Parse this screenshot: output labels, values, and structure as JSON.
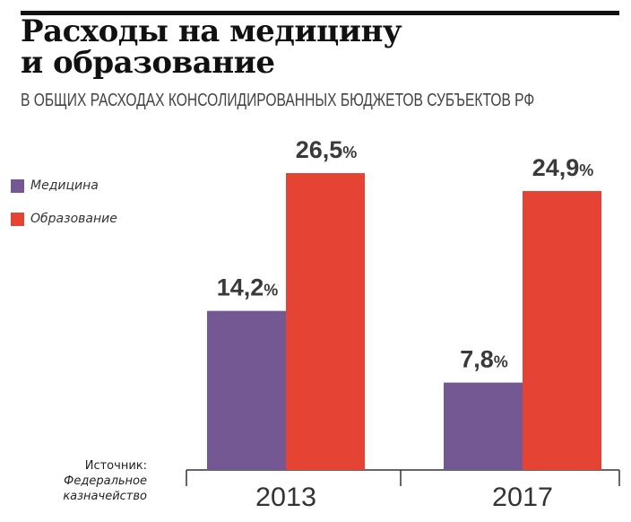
{
  "header": {
    "title_line1": "Расходы на медицину",
    "title_line2": "и образование",
    "subtitle": "В ОБЩИХ РАСХОДАХ КОНСОЛИДИРОВАННЫХ БЮДЖЕТОВ СУБЪЕКТОВ РФ"
  },
  "source": {
    "label": "Источник:",
    "name_line1": "Федеральное",
    "name_line2": "казначейство"
  },
  "chart_data": {
    "type": "bar",
    "title": "Расходы на медицину и образование",
    "subtitle": "В ОБЩИХ РАСХОДАХ КОНСОЛИДИРОВАННЫХ БЮДЖЕТОВ СУБЪЕКТОВ РФ",
    "categories": [
      "2013",
      "2017"
    ],
    "series": [
      {
        "name": "Медицина",
        "color": "#745893",
        "values": [
          14.2,
          7.8
        ],
        "labels": [
          "14,2",
          "7,8"
        ]
      },
      {
        "name": "Образование",
        "color": "#e54334",
        "values": [
          26.5,
          24.9
        ],
        "labels": [
          "26,5",
          "24,9"
        ]
      }
    ],
    "value_suffix": "%",
    "ylim": [
      0,
      26.5
    ],
    "grid": false,
    "legend_position": "left"
  }
}
